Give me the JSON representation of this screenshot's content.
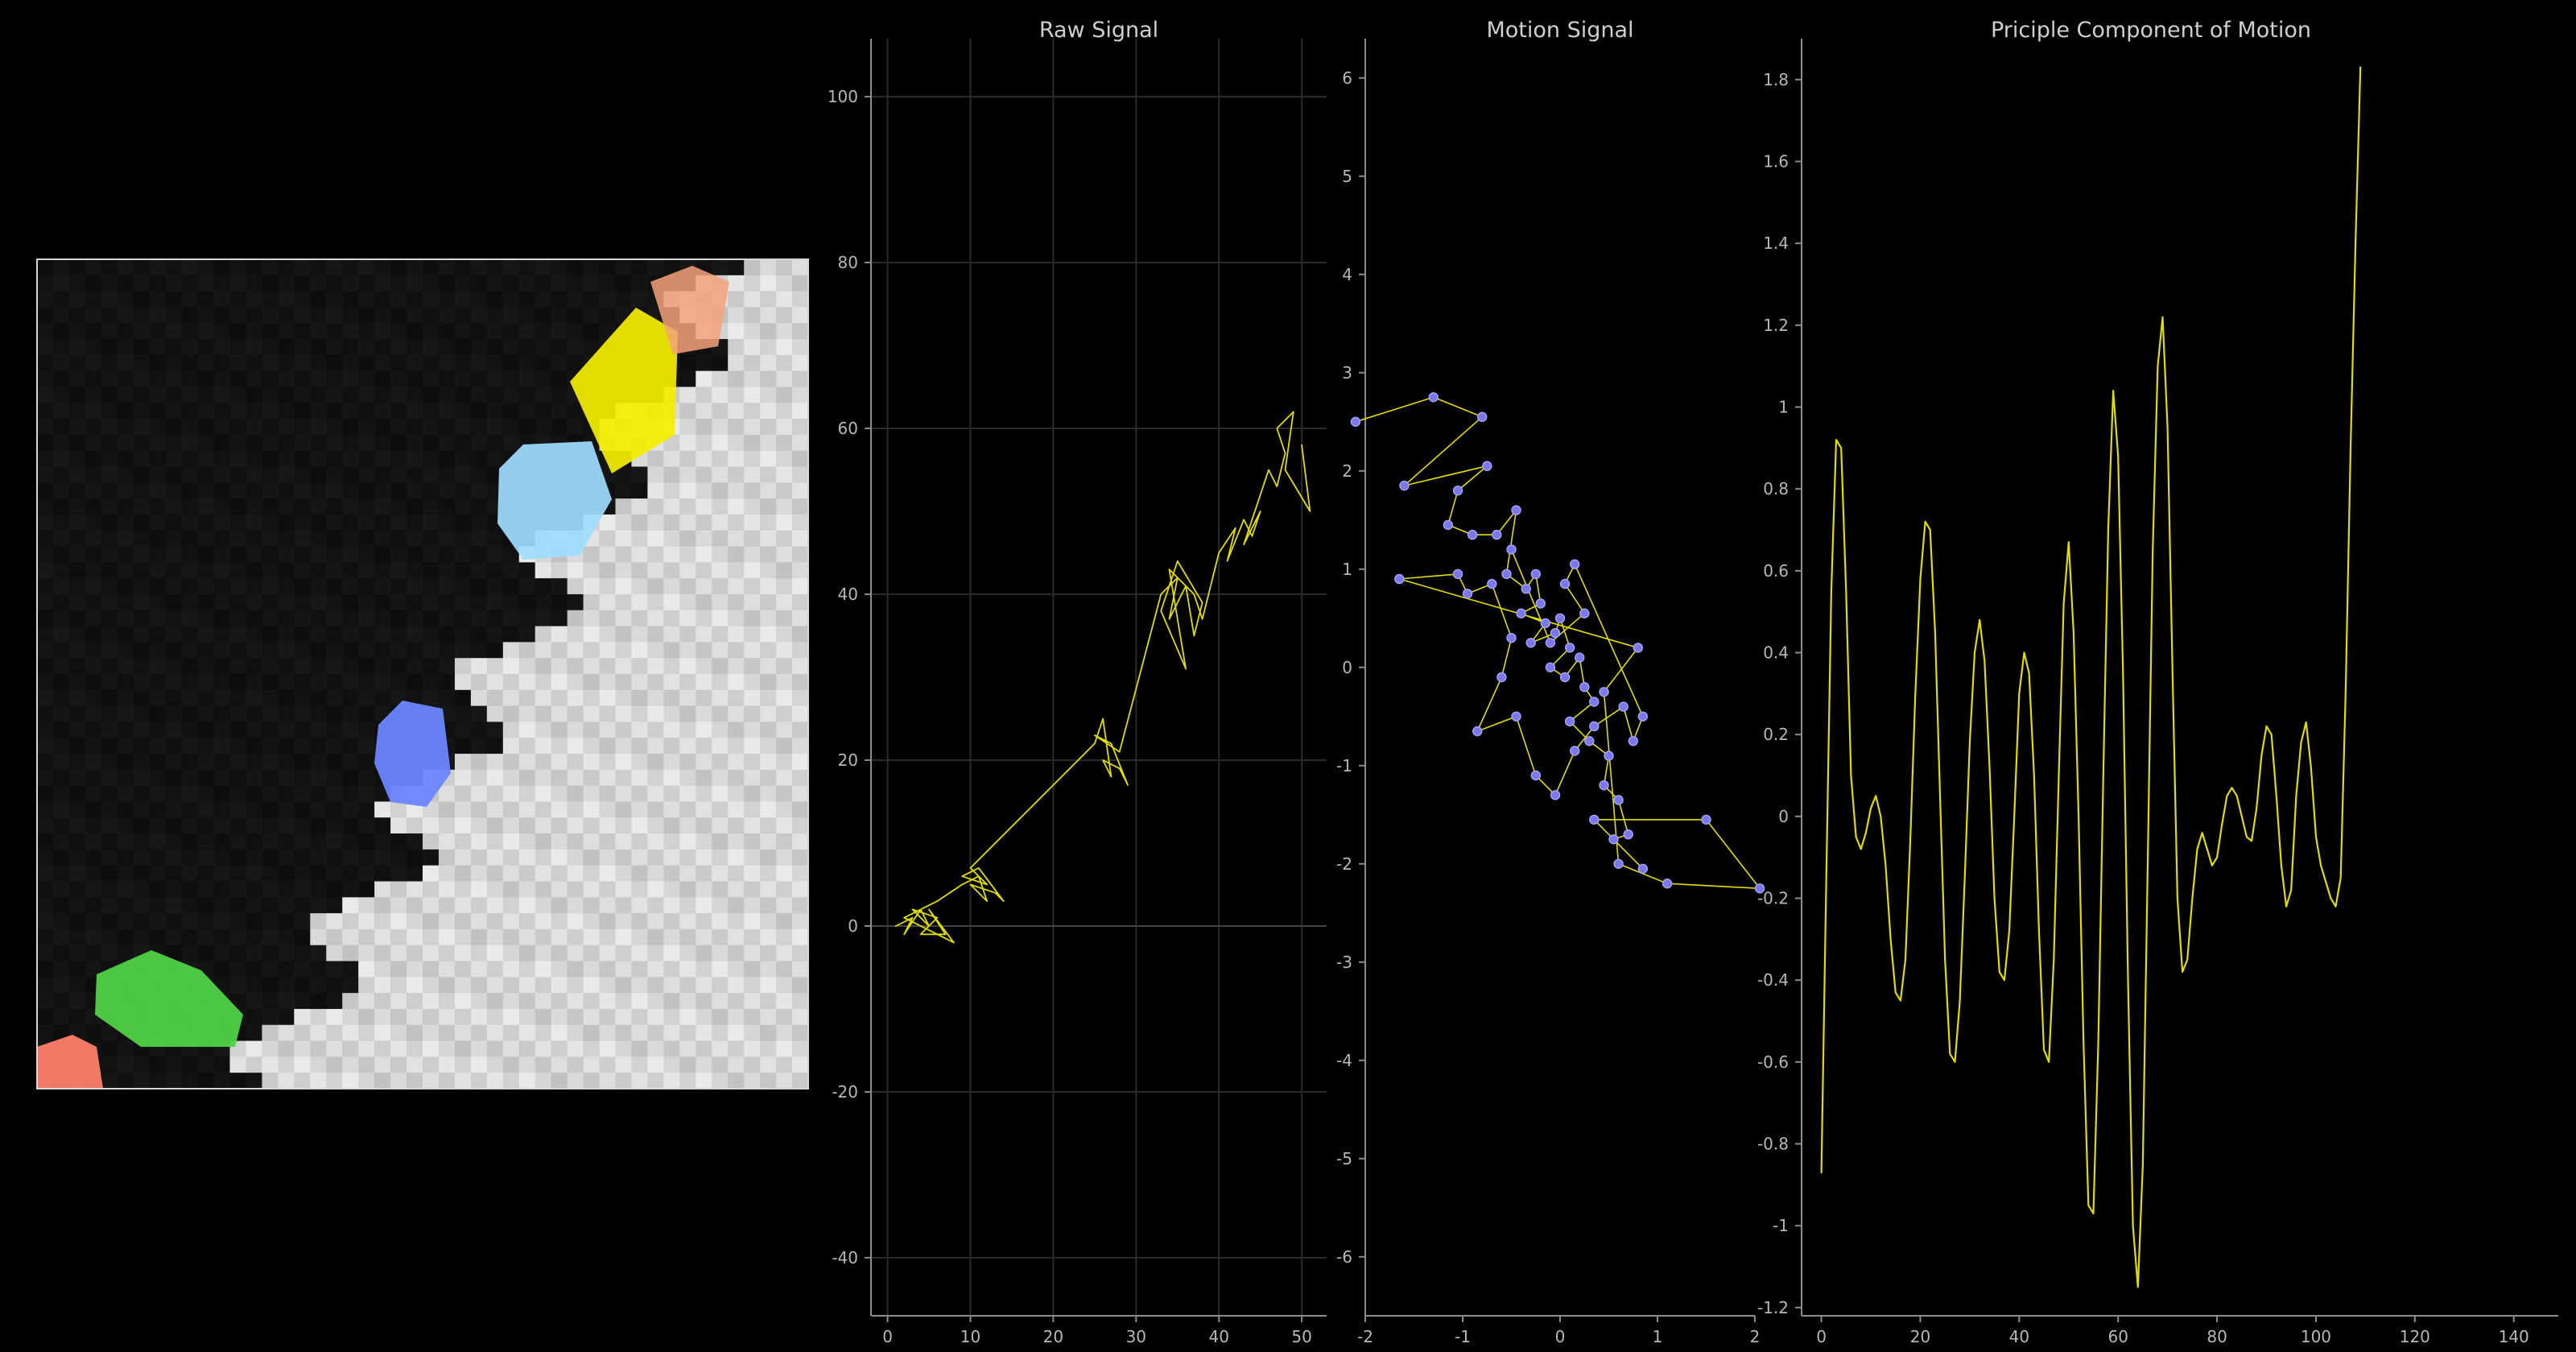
{
  "colors": {
    "background": "#000000",
    "trace": "#e2dc00",
    "marker": "#7b78e8",
    "marker_edge": "#a6a3ff",
    "text": "#cfcfcf"
  },
  "image_panel": {
    "description": "video frame heatmap with colored regions",
    "palette": [
      "#1c1c1c",
      "#d8d8d8",
      "#ececec",
      "#f5ee00",
      "#f6a27a",
      "#9fdcff",
      "#6a86ff",
      "#50d246",
      "#ff7f6b"
    ]
  },
  "chart_data": [
    {
      "type": "line",
      "title": "Raw Signal",
      "xlim": [
        -2,
        53
      ],
      "ylim": [
        -47,
        107
      ],
      "x_ticks": [
        0,
        10,
        20,
        30,
        40,
        50
      ],
      "y_ticks": [
        -40,
        -20,
        0,
        20,
        40,
        60,
        80,
        100
      ],
      "grid": true,
      "series": [
        {
          "values": [
            [
              1,
              0
            ],
            [
              3,
              1
            ],
            [
              2,
              -1
            ],
            [
              4,
              2
            ],
            [
              5,
              0
            ],
            [
              3,
              2
            ],
            [
              6,
              1
            ],
            [
              4,
              -1
            ],
            [
              7,
              -1
            ],
            [
              5,
              2
            ],
            [
              8,
              -2
            ],
            [
              2,
              1
            ],
            [
              6,
              3
            ],
            [
              9,
              5
            ],
            [
              11,
              6
            ],
            [
              12,
              3
            ],
            [
              10,
              5
            ],
            [
              13,
              4
            ],
            [
              14,
              3
            ],
            [
              11,
              7
            ],
            [
              9,
              6
            ],
            [
              12,
              5
            ],
            [
              10,
              7
            ],
            [
              25,
              22
            ],
            [
              26,
              25
            ],
            [
              27,
              18
            ],
            [
              26,
              20
            ],
            [
              28,
              19
            ],
            [
              29,
              17
            ],
            [
              27,
              22
            ],
            [
              25,
              23
            ],
            [
              28,
              21
            ],
            [
              33,
              40
            ],
            [
              35,
              42
            ],
            [
              34,
              37
            ],
            [
              36,
              41
            ],
            [
              37,
              35
            ],
            [
              38,
              39
            ],
            [
              35,
              44
            ],
            [
              33,
              38
            ],
            [
              36,
              31
            ],
            [
              34,
              43
            ],
            [
              37,
              40
            ],
            [
              38,
              37
            ],
            [
              40,
              45
            ],
            [
              42,
              48
            ],
            [
              41,
              44
            ],
            [
              43,
              49
            ],
            [
              44,
              47
            ],
            [
              45,
              50
            ],
            [
              43,
              46
            ],
            [
              46,
              55
            ],
            [
              47,
              53
            ],
            [
              48,
              57
            ],
            [
              47,
              60
            ],
            [
              49,
              62
            ],
            [
              48,
              55
            ],
            [
              51,
              50
            ],
            [
              50,
              58
            ]
          ]
        }
      ]
    },
    {
      "type": "scatter",
      "title": "Motion Signal",
      "xlim": [
        -2,
        2
      ],
      "ylim": [
        -6.6,
        6.4
      ],
      "x_ticks": [
        -2,
        -1,
        0,
        1,
        2
      ],
      "y_ticks": [
        -6,
        -5,
        -4,
        -3,
        -2,
        -1,
        0,
        1,
        2,
        3,
        4,
        5,
        6
      ],
      "series": [
        {
          "values": [
            [
              -2.1,
              2.5
            ],
            [
              -1.3,
              2.75
            ],
            [
              -0.8,
              2.55
            ],
            [
              -1.6,
              1.85
            ],
            [
              -0.75,
              2.05
            ],
            [
              -1.05,
              1.8
            ],
            [
              -1.15,
              1.45
            ],
            [
              -0.9,
              1.35
            ],
            [
              -0.65,
              1.35
            ],
            [
              -0.45,
              1.6
            ],
            [
              -0.55,
              0.95
            ],
            [
              -0.35,
              0.8
            ],
            [
              -0.25,
              0.95
            ],
            [
              -0.2,
              0.65
            ],
            [
              -0.4,
              0.55
            ],
            [
              -0.15,
              0.45
            ],
            [
              -0.3,
              0.25
            ],
            [
              -0.05,
              0.35
            ],
            [
              0.0,
              0.5
            ],
            [
              0.1,
              0.2
            ],
            [
              -0.1,
              0.0
            ],
            [
              0.05,
              -0.1
            ],
            [
              0.2,
              0.1
            ],
            [
              0.25,
              -0.2
            ],
            [
              0.35,
              -0.35
            ],
            [
              0.1,
              -0.55
            ],
            [
              0.3,
              -0.75
            ],
            [
              0.5,
              -0.9
            ],
            [
              0.45,
              -1.2
            ],
            [
              0.6,
              -1.35
            ],
            [
              0.7,
              -1.7
            ],
            [
              0.55,
              -1.75
            ],
            [
              0.85,
              -2.05
            ],
            [
              0.35,
              -1.55
            ],
            [
              1.5,
              -1.55
            ],
            [
              2.05,
              -2.25
            ],
            [
              1.1,
              -2.2
            ],
            [
              0.6,
              -2.0
            ],
            [
              0.45,
              -0.25
            ],
            [
              0.8,
              0.2
            ],
            [
              -1.65,
              0.9
            ],
            [
              -1.05,
              0.95
            ],
            [
              -0.95,
              0.75
            ],
            [
              -0.7,
              0.85
            ],
            [
              -0.5,
              0.3
            ],
            [
              -0.6,
              -0.1
            ],
            [
              -0.85,
              -0.65
            ],
            [
              -0.45,
              -0.5
            ],
            [
              -0.25,
              -1.1
            ],
            [
              -0.05,
              -1.3
            ],
            [
              0.15,
              -0.85
            ],
            [
              0.35,
              -0.6
            ],
            [
              0.65,
              -0.4
            ],
            [
              0.75,
              -0.75
            ],
            [
              0.85,
              -0.5
            ],
            [
              0.15,
              1.05
            ],
            [
              0.05,
              0.85
            ],
            [
              0.25,
              0.55
            ],
            [
              -0.1,
              0.25
            ],
            [
              -0.5,
              1.2
            ]
          ]
        }
      ]
    },
    {
      "type": "line",
      "title": "Priciple Component of Motion",
      "xlim": [
        -4,
        149
      ],
      "ylim": [
        -1.22,
        1.9
      ],
      "x_ticks": [
        0,
        20,
        40,
        60,
        80,
        100,
        120,
        140
      ],
      "y_ticks": [
        -1.2,
        -1,
        -0.8,
        -0.6,
        -0.4,
        -0.2,
        0,
        0.2,
        0.4,
        0.6,
        0.8,
        1,
        1.2,
        1.4,
        1.6,
        1.8
      ],
      "series": [
        {
          "values": [
            [
              0,
              -0.87
            ],
            [
              1,
              -0.15
            ],
            [
              2,
              0.55
            ],
            [
              3,
              0.92
            ],
            [
              4,
              0.9
            ],
            [
              5,
              0.55
            ],
            [
              6,
              0.1
            ],
            [
              7,
              -0.05
            ],
            [
              8,
              -0.08
            ],
            [
              9,
              -0.04
            ],
            [
              10,
              0.02
            ],
            [
              11,
              0.05
            ],
            [
              12,
              0.0
            ],
            [
              13,
              -0.12
            ],
            [
              14,
              -0.3
            ],
            [
              15,
              -0.43
            ],
            [
              16,
              -0.45
            ],
            [
              17,
              -0.35
            ],
            [
              18,
              -0.05
            ],
            [
              19,
              0.3
            ],
            [
              20,
              0.58
            ],
            [
              21,
              0.72
            ],
            [
              22,
              0.7
            ],
            [
              23,
              0.45
            ],
            [
              24,
              0.05
            ],
            [
              25,
              -0.35
            ],
            [
              26,
              -0.58
            ],
            [
              27,
              -0.6
            ],
            [
              28,
              -0.45
            ],
            [
              29,
              -0.15
            ],
            [
              30,
              0.18
            ],
            [
              31,
              0.4
            ],
            [
              32,
              0.48
            ],
            [
              33,
              0.38
            ],
            [
              34,
              0.12
            ],
            [
              35,
              -0.2
            ],
            [
              36,
              -0.38
            ],
            [
              37,
              -0.4
            ],
            [
              38,
              -0.28
            ],
            [
              39,
              0.0
            ],
            [
              40,
              0.3
            ],
            [
              41,
              0.4
            ],
            [
              42,
              0.35
            ],
            [
              43,
              0.1
            ],
            [
              44,
              -0.28
            ],
            [
              45,
              -0.57
            ],
            [
              46,
              -0.6
            ],
            [
              47,
              -0.35
            ],
            [
              48,
              0.1
            ],
            [
              49,
              0.52
            ],
            [
              50,
              0.67
            ],
            [
              51,
              0.45
            ],
            [
              52,
              0.0
            ],
            [
              53,
              -0.55
            ],
            [
              54,
              -0.95
            ],
            [
              55,
              -0.97
            ],
            [
              56,
              -0.55
            ],
            [
              57,
              0.1
            ],
            [
              58,
              0.7
            ],
            [
              59,
              1.04
            ],
            [
              60,
              0.88
            ],
            [
              61,
              0.35
            ],
            [
              62,
              -0.4
            ],
            [
              63,
              -1.0
            ],
            [
              64,
              -1.15
            ],
            [
              65,
              -0.85
            ],
            [
              66,
              -0.1
            ],
            [
              67,
              0.65
            ],
            [
              68,
              1.1
            ],
            [
              69,
              1.22
            ],
            [
              70,
              0.95
            ],
            [
              71,
              0.35
            ],
            [
              72,
              -0.2
            ],
            [
              73,
              -0.38
            ],
            [
              74,
              -0.35
            ],
            [
              75,
              -0.2
            ],
            [
              76,
              -0.08
            ],
            [
              77,
              -0.04
            ],
            [
              78,
              -0.08
            ],
            [
              79,
              -0.12
            ],
            [
              80,
              -0.1
            ],
            [
              81,
              -0.02
            ],
            [
              82,
              0.05
            ],
            [
              83,
              0.07
            ],
            [
              84,
              0.05
            ],
            [
              85,
              0.0
            ],
            [
              86,
              -0.05
            ],
            [
              87,
              -0.06
            ],
            [
              88,
              0.02
            ],
            [
              89,
              0.15
            ],
            [
              90,
              0.22
            ],
            [
              91,
              0.2
            ],
            [
              92,
              0.05
            ],
            [
              93,
              -0.12
            ],
            [
              94,
              -0.22
            ],
            [
              95,
              -0.18
            ],
            [
              96,
              0.05
            ],
            [
              97,
              0.18
            ],
            [
              98,
              0.23
            ],
            [
              99,
              0.12
            ],
            [
              100,
              -0.05
            ],
            [
              101,
              -0.12
            ],
            [
              102,
              -0.16
            ],
            [
              103,
              -0.2
            ],
            [
              104,
              -0.22
            ],
            [
              105,
              -0.15
            ],
            [
              106,
              0.3
            ],
            [
              107,
              0.9
            ],
            [
              108,
              1.4
            ],
            [
              109,
              1.83
            ]
          ]
        }
      ]
    }
  ]
}
